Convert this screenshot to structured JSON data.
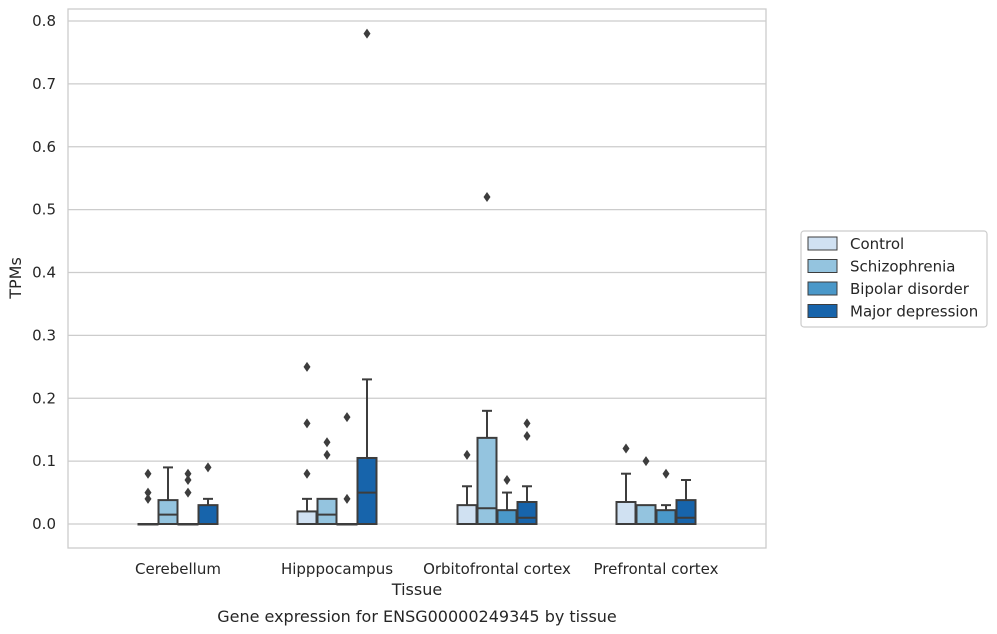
{
  "chart_data": {
    "type": "box",
    "xlabel": "Tissue",
    "ylabel": "TPMs",
    "caption": "Gene expression for ENSG00000249345 by tissue",
    "ylim": [
      -0.04,
      0.82
    ],
    "yticks": [
      "0.0",
      "0.1",
      "0.2",
      "0.3",
      "0.4",
      "0.5",
      "0.6",
      "0.7",
      "0.8"
    ],
    "ytick_values": [
      0.0,
      0.1,
      0.2,
      0.3,
      0.4,
      0.5,
      0.6,
      0.7,
      0.8
    ],
    "grid": "horizontal",
    "legend_position": "right",
    "categories": [
      "Cerebellum",
      "Hipppocampus",
      "Orbitofrontal cortex",
      "Prefrontal cortex"
    ],
    "series": [
      {
        "name": "Control",
        "color": "#d0e1f2",
        "boxes": [
          {
            "q1": 0.0,
            "median": 0.0,
            "q3": 0.0,
            "whisker_low": 0.0,
            "whisker_high": 0.0,
            "outliers": [
              0.04,
              0.05,
              0.08
            ]
          },
          {
            "q1": 0.0,
            "median": 0.0,
            "q3": 0.02,
            "whisker_low": 0.0,
            "whisker_high": 0.04,
            "outliers": [
              0.08,
              0.16,
              0.25
            ]
          },
          {
            "q1": 0.0,
            "median": 0.0,
            "q3": 0.03,
            "whisker_low": 0.0,
            "whisker_high": 0.06,
            "outliers": [
              0.11
            ]
          },
          {
            "q1": 0.0,
            "median": 0.0,
            "q3": 0.035,
            "whisker_low": 0.0,
            "whisker_high": 0.08,
            "outliers": [
              0.12
            ]
          }
        ]
      },
      {
        "name": "Schizophrenia",
        "color": "#94c4df",
        "boxes": [
          {
            "q1": 0.0,
            "median": 0.015,
            "q3": 0.038,
            "whisker_low": 0.0,
            "whisker_high": 0.09,
            "outliers": []
          },
          {
            "q1": 0.0,
            "median": 0.015,
            "q3": 0.04,
            "whisker_low": 0.0,
            "whisker_high": 0.04,
            "outliers": [
              0.11,
              0.13
            ]
          },
          {
            "q1": 0.0,
            "median": 0.025,
            "q3": 0.137,
            "whisker_low": 0.0,
            "whisker_high": 0.18,
            "outliers": [
              0.52
            ]
          },
          {
            "q1": 0.0,
            "median": 0.0,
            "q3": 0.03,
            "whisker_low": 0.0,
            "whisker_high": 0.03,
            "outliers": [
              0.1
            ]
          }
        ]
      },
      {
        "name": "Bipolar disorder",
        "color": "#4a98c9",
        "boxes": [
          {
            "q1": 0.0,
            "median": 0.0,
            "q3": 0.0,
            "whisker_low": 0.0,
            "whisker_high": 0.0,
            "outliers": [
              0.05,
              0.07,
              0.08
            ]
          },
          {
            "q1": 0.0,
            "median": 0.0,
            "q3": 0.0,
            "whisker_low": 0.0,
            "whisker_high": 0.0,
            "outliers": [
              0.04,
              0.17
            ]
          },
          {
            "q1": 0.0,
            "median": 0.0,
            "q3": 0.022,
            "whisker_low": 0.0,
            "whisker_high": 0.05,
            "outliers": [
              0.07
            ]
          },
          {
            "q1": 0.0,
            "median": 0.0,
            "q3": 0.022,
            "whisker_low": 0.0,
            "whisker_high": 0.03,
            "outliers": [
              0.08
            ]
          }
        ]
      },
      {
        "name": "Major depression",
        "color": "#1764ab",
        "boxes": [
          {
            "q1": 0.0,
            "median": 0.0,
            "q3": 0.03,
            "whisker_low": 0.0,
            "whisker_high": 0.04,
            "outliers": [
              0.09
            ]
          },
          {
            "q1": 0.0,
            "median": 0.05,
            "q3": 0.105,
            "whisker_low": 0.0,
            "whisker_high": 0.23,
            "outliers": [
              0.78
            ]
          },
          {
            "q1": 0.0,
            "median": 0.01,
            "q3": 0.035,
            "whisker_low": 0.0,
            "whisker_high": 0.06,
            "outliers": [
              0.14,
              0.16
            ]
          },
          {
            "q1": 0.0,
            "median": 0.01,
            "q3": 0.038,
            "whisker_low": 0.0,
            "whisker_high": 0.07,
            "outliers": []
          }
        ]
      }
    ]
  }
}
